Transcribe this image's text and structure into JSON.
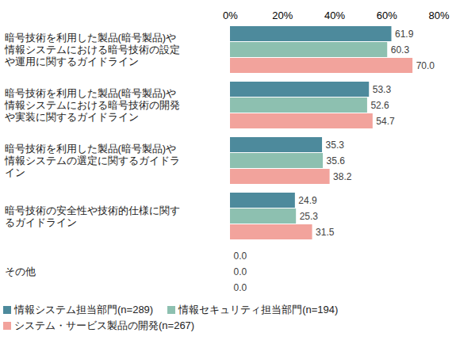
{
  "chart_data": {
    "type": "bar",
    "orientation": "horizontal",
    "data_labels": true,
    "grid": false,
    "legend": "bottom",
    "categories": [
      "暗号技術を利用した製品(暗号製品)や情報システムにおける暗号技術の設定や運用に関するガイドライン",
      "暗号技術を利用した製品(暗号製品)や情報システムにおける暗号技術の開発や実装に関するガイドライン",
      "暗号技術を利用した製品(暗号製品)や情報システムの選定に関するガイドライン",
      "暗号技術の安全性や技術的仕様に関するガイドライン",
      "その他"
    ],
    "series": [
      {
        "name": "情報システム担当部門(n=289)",
        "color": "#4d8a9c",
        "values": [
          61.9,
          53.3,
          35.3,
          24.9,
          0.0
        ],
        "value_labels": [
          "61.9",
          "53.3",
          "35.3",
          "24.9",
          "0.0"
        ]
      },
      {
        "name": "情報セキュリティ担当部門(n=194)",
        "color": "#8dc0b0",
        "values": [
          60.3,
          52.6,
          35.6,
          25.3,
          0.0
        ],
        "value_labels": [
          "60.3",
          "52.6",
          "35.6",
          "25.3",
          "0.0"
        ]
      },
      {
        "name": "システム・サービス製品の開発(n=267)",
        "color": "#f2a39c",
        "values": [
          70.0,
          54.7,
          38.2,
          31.5,
          0.0
        ],
        "value_labels": [
          "70.0",
          "54.7",
          "38.2",
          "31.5",
          "0.0"
        ]
      }
    ],
    "xlim": [
      0,
      80
    ],
    "xticks": [
      {
        "value": 0,
        "label": "0%"
      },
      {
        "value": 20,
        "label": "20%"
      },
      {
        "value": 40,
        "label": "40%"
      },
      {
        "value": 60,
        "label": "60%"
      },
      {
        "value": 80,
        "label": "80%"
      }
    ]
  }
}
